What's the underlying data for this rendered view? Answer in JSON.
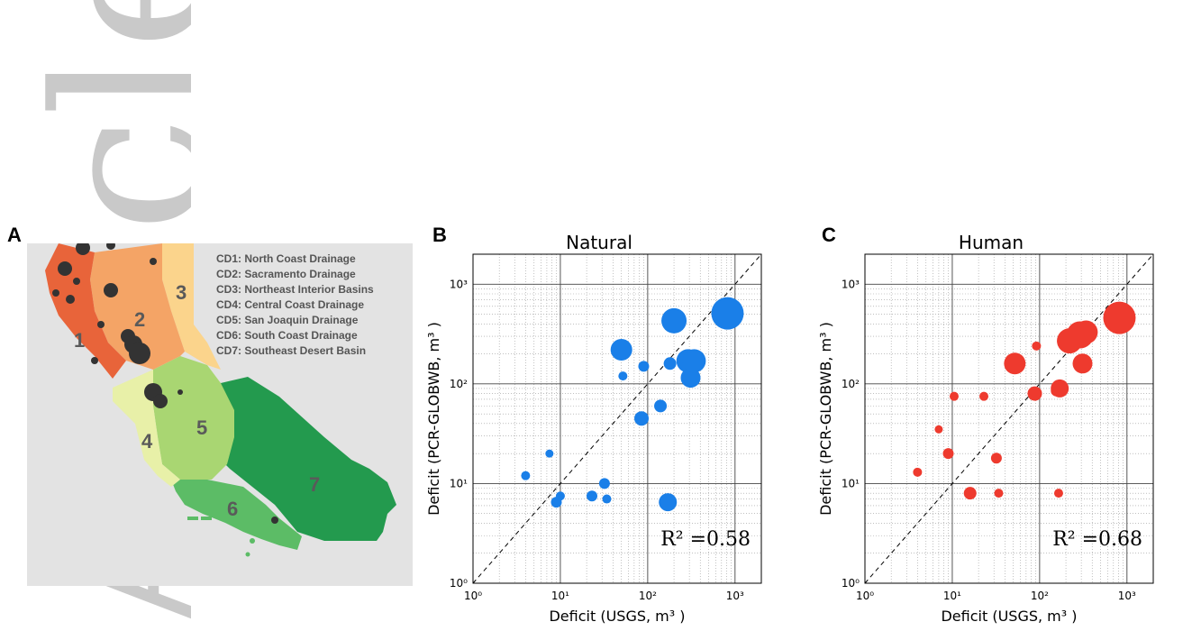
{
  "watermark": "Article",
  "panels": {
    "a": {
      "letter": "A",
      "legend": [
        "CD1: North Coast Drainage",
        "CD2: Sacramento Drainage",
        "CD3: Northeast Interior Basins",
        "CD4: Central Coast Drainage",
        "CD5: San Joaquin Drainage",
        "CD6: South Coast Drainage",
        "CD7: Southeast Desert Basin"
      ],
      "region_numbers": [
        "1",
        "2",
        "3",
        "4",
        "5",
        "6",
        "7"
      ],
      "colors": {
        "background": "#e3e3e3",
        "cd1": "#e8643a",
        "cd2": "#f4a466",
        "cd3": "#fbd48c",
        "cd4": "#e8f0a8",
        "cd5": "#a9d672",
        "cd6": "#5cbc66",
        "cd7": "#239a4e",
        "marker": "#333333"
      }
    },
    "b": {
      "letter": "B"
    },
    "c": {
      "letter": "C"
    }
  },
  "chart_data": [
    {
      "type": "scatter",
      "title": "Natural",
      "xlabel": "Deficit (USGS, m³ )",
      "ylabel": "Deficit (PCR-GLOBWB, m³ )",
      "xscale": "log",
      "yscale": "log",
      "xlim": [
        1,
        2000
      ],
      "ylim": [
        1,
        2000
      ],
      "xticks": [
        "10⁰",
        "10¹",
        "10²",
        "10³"
      ],
      "yticks": [
        "10⁰",
        "10¹",
        "10²",
        "10³"
      ],
      "grid": true,
      "reference_line": "y = x (dashed)",
      "annotation": "R² =0.58",
      "color": "#1a7fe8",
      "points": [
        {
          "x": 4,
          "y": 12,
          "r": 5
        },
        {
          "x": 7.5,
          "y": 20,
          "r": 4.5
        },
        {
          "x": 9,
          "y": 6.5,
          "r": 6
        },
        {
          "x": 10,
          "y": 7.5,
          "r": 5
        },
        {
          "x": 23,
          "y": 7.5,
          "r": 6
        },
        {
          "x": 32,
          "y": 10,
          "r": 6
        },
        {
          "x": 34,
          "y": 7,
          "r": 5
        },
        {
          "x": 50,
          "y": 220,
          "r": 12
        },
        {
          "x": 52,
          "y": 120,
          "r": 5
        },
        {
          "x": 85,
          "y": 45,
          "r": 8
        },
        {
          "x": 90,
          "y": 150,
          "r": 6
        },
        {
          "x": 140,
          "y": 60,
          "r": 7
        },
        {
          "x": 170,
          "y": 6.5,
          "r": 10
        },
        {
          "x": 180,
          "y": 160,
          "r": 7
        },
        {
          "x": 200,
          "y": 430,
          "r": 14
        },
        {
          "x": 290,
          "y": 170,
          "r": 13
        },
        {
          "x": 310,
          "y": 115,
          "r": 11
        },
        {
          "x": 340,
          "y": 170,
          "r": 13
        },
        {
          "x": 820,
          "y": 510,
          "r": 18
        }
      ]
    },
    {
      "type": "scatter",
      "title": "Human",
      "xlabel": "Deficit (USGS, m³ )",
      "ylabel": "Deficit (PCR-GLOBWB, m³ )",
      "xscale": "log",
      "yscale": "log",
      "xlim": [
        1,
        2000
      ],
      "ylim": [
        1,
        2000
      ],
      "xticks": [
        "10⁰",
        "10¹",
        "10²",
        "10³"
      ],
      "yticks": [
        "10⁰",
        "10¹",
        "10²",
        "10³"
      ],
      "grid": true,
      "reference_line": "y = x (dashed)",
      "annotation": "R² =0.68",
      "color": "#ee3a2e",
      "points": [
        {
          "x": 4,
          "y": 13,
          "r": 5
        },
        {
          "x": 7,
          "y": 35,
          "r": 4.5
        },
        {
          "x": 9,
          "y": 20,
          "r": 6
        },
        {
          "x": 10.5,
          "y": 75,
          "r": 5
        },
        {
          "x": 16,
          "y": 8,
          "r": 7
        },
        {
          "x": 23,
          "y": 75,
          "r": 5
        },
        {
          "x": 32,
          "y": 18,
          "r": 6
        },
        {
          "x": 34,
          "y": 8,
          "r": 5
        },
        {
          "x": 52,
          "y": 160,
          "r": 12
        },
        {
          "x": 88,
          "y": 80,
          "r": 8
        },
        {
          "x": 92,
          "y": 240,
          "r": 5
        },
        {
          "x": 155,
          "y": 85,
          "r": 6
        },
        {
          "x": 165,
          "y": 8,
          "r": 5
        },
        {
          "x": 170,
          "y": 90,
          "r": 10
        },
        {
          "x": 220,
          "y": 270,
          "r": 14
        },
        {
          "x": 290,
          "y": 310,
          "r": 15
        },
        {
          "x": 310,
          "y": 160,
          "r": 11
        },
        {
          "x": 340,
          "y": 330,
          "r": 13
        },
        {
          "x": 820,
          "y": 460,
          "r": 18
        }
      ]
    }
  ]
}
